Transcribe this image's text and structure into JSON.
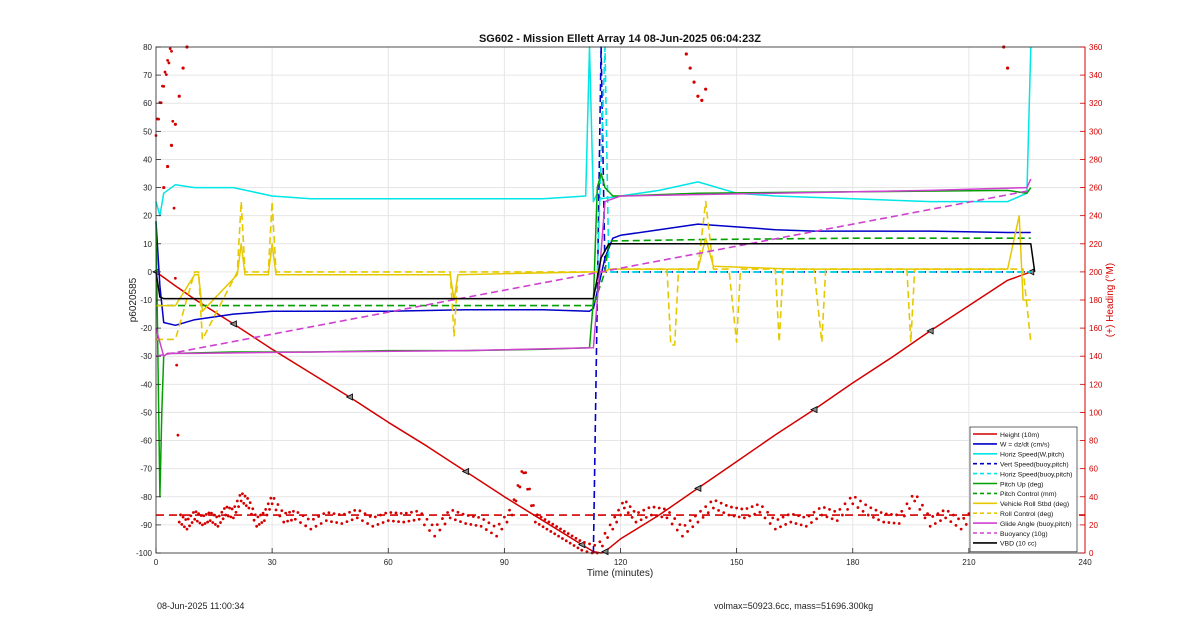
{
  "chart_data": {
    "type": "line",
    "title": "SG602 - Mission Ellett Array 14 08-Jun-2025 06:04:23Z",
    "xlabel": "Time (minutes)",
    "ylabel_left": "p6020585",
    "ylabel_right": "(+) Heading (°M)",
    "xlim": [
      0,
      240
    ],
    "ylim_left": [
      -100,
      80
    ],
    "ylim_right": [
      0,
      360
    ],
    "xticks": [
      0,
      30,
      60,
      90,
      120,
      150,
      180,
      210,
      240
    ],
    "yticks_left": [
      -100,
      -90,
      -80,
      -70,
      -60,
      -50,
      -40,
      -30,
      -20,
      -10,
      0,
      10,
      20,
      30,
      40,
      50,
      60,
      70,
      80
    ],
    "yticks_right": [
      0,
      20,
      40,
      60,
      80,
      100,
      120,
      140,
      160,
      180,
      200,
      220,
      240,
      260,
      280,
      300,
      320,
      340,
      360
    ],
    "grid": true,
    "legend_position": "bottom-right",
    "colors": {
      "height": "#d40000",
      "w": "#0000c8",
      "horiz": "#00e5e5",
      "pitch": "#00a000",
      "roll": "#e6c800",
      "glide": "#d040d0",
      "vbd": "#000000"
    },
    "series": [
      {
        "name": "Height (10m)",
        "color": "#d40000",
        "style": "solid",
        "marker": "triangle",
        "x": [
          0,
          5,
          10,
          20,
          30,
          40,
          50,
          60,
          70,
          80,
          90,
          100,
          110,
          113,
          115,
          116,
          120,
          130,
          140,
          150,
          160,
          170,
          180,
          190,
          200,
          210,
          220,
          226
        ],
        "y": [
          0,
          -5,
          -9.7,
          -18.5,
          -27.5,
          -36,
          -44.5,
          -53.5,
          -62,
          -71,
          -80,
          -88.5,
          -97,
          -99.5,
          -100,
          -99.5,
          -95,
          -86.5,
          -77,
          -67.5,
          -58,
          -49,
          -39.5,
          -30.5,
          -21,
          -12,
          -3,
          0
        ]
      },
      {
        "name": "W = dz/dt (cm/s)",
        "color": "#0000c8",
        "style": "solid",
        "x": [
          0,
          1,
          2,
          5,
          10,
          20,
          30,
          40,
          60,
          80,
          100,
          112,
          113,
          116,
          118,
          120,
          130,
          140,
          150,
          160,
          170,
          180,
          200,
          220,
          226
        ],
        "y": [
          18,
          -5,
          -18,
          -19,
          -17,
          -15,
          -14,
          -14,
          -14,
          -13.5,
          -13.5,
          -14,
          -13,
          5,
          12,
          13,
          15,
          17,
          16,
          15,
          14.5,
          14.5,
          14.5,
          14,
          14
        ]
      },
      {
        "name": "Horiz Speed(W,pitch)",
        "color": "#00e5e5",
        "style": "solid",
        "x": [
          0,
          1,
          2,
          5,
          10,
          20,
          30,
          40,
          60,
          80,
          100,
          111,
          112,
          113,
          114,
          115,
          120,
          130,
          140,
          150,
          160,
          180,
          200,
          220,
          225,
          226
        ],
        "y": [
          25,
          20,
          28,
          31,
          30,
          30,
          27,
          26,
          26,
          26,
          26,
          27,
          80,
          25,
          28,
          26,
          27,
          29,
          32,
          28,
          27,
          26,
          25,
          25,
          28,
          80
        ]
      },
      {
        "name": "Vert Speed(buoy,pitch)",
        "color": "#0000c8",
        "style": "dashed",
        "x": [
          113,
          115,
          116,
          117,
          120,
          140,
          160,
          200,
          226
        ],
        "y": [
          -100,
          80,
          0,
          0,
          0,
          0,
          0,
          0,
          0
        ]
      },
      {
        "name": "Horiz Speed(buoy,pitch)",
        "color": "#00e5e5",
        "style": "dashed",
        "x": [
          114,
          116,
          117,
          118,
          120,
          140,
          200,
          226
        ],
        "y": [
          0,
          80,
          0,
          0,
          0,
          0,
          0,
          0
        ]
      },
      {
        "name": "Pitch Up (deg)",
        "color": "#00a000",
        "style": "solid",
        "x": [
          0,
          1,
          1.5,
          2,
          3,
          5,
          20,
          40,
          60,
          80,
          100,
          112,
          113,
          114,
          115,
          116,
          118,
          120,
          140,
          180,
          220,
          225,
          226
        ],
        "y": [
          18,
          -80,
          -50,
          -30,
          -29,
          -29,
          -28.5,
          -28.5,
          -28,
          -28,
          -27.5,
          -27,
          -10,
          30,
          35,
          30,
          27,
          27,
          28,
          28.5,
          29,
          28,
          30
        ]
      },
      {
        "name": "Pitch Control (mm)",
        "color": "#00a000",
        "style": "dashed",
        "x": [
          0,
          2,
          113,
          116,
          117,
          140,
          180,
          226
        ],
        "y": [
          -12,
          -12,
          -12,
          0,
          11,
          11.5,
          12,
          12
        ]
      },
      {
        "name": "Vehicle Roll Stbd (deg)",
        "color": "#e6c800",
        "style": "solid",
        "x": [
          0,
          2,
          5,
          10,
          11,
          12,
          21,
          22,
          23,
          29,
          30,
          31,
          36,
          76,
          77,
          78,
          113,
          116,
          117,
          140,
          142,
          144,
          165,
          185,
          205,
          215,
          220,
          223,
          224,
          226
        ],
        "y": [
          -12,
          -12,
          -12,
          -1,
          -1,
          -14,
          -1,
          10,
          -1,
          -1,
          10,
          -1,
          -1,
          -1,
          -10,
          -1,
          0,
          0,
          1,
          1,
          12,
          2,
          1,
          1,
          1,
          1,
          1,
          20,
          -10,
          -10
        ]
      },
      {
        "name": "Roll Control (deg)",
        "color": "#e6c800",
        "style": "dashed",
        "x": [
          0,
          2,
          5,
          10,
          11,
          12,
          21,
          22,
          23,
          29,
          30,
          31,
          36,
          76,
          77,
          78,
          113,
          116,
          117,
          132,
          133,
          134,
          135,
          140,
          142,
          144,
          148,
          150,
          151,
          160,
          161,
          162,
          170,
          172,
          173,
          194,
          195,
          196,
          224,
          226
        ],
        "y": [
          -24,
          -24,
          -24,
          0,
          0,
          -24,
          0,
          25,
          0,
          0,
          25,
          0,
          0,
          0,
          -23,
          0,
          0,
          0,
          1,
          1,
          -26,
          -26,
          1,
          1,
          25,
          1,
          1,
          -25,
          1,
          1,
          -25,
          1,
          1,
          -25,
          1,
          1,
          -25,
          1,
          1,
          -25
        ]
      },
      {
        "name": "Glide Angle (buoy,pitch)",
        "color": "#d040d0",
        "style": "solid",
        "x": [
          0,
          2,
          3,
          10,
          40,
          80,
          113,
          114,
          116,
          120,
          160,
          200,
          225,
          226
        ],
        "y": [
          -20,
          -30,
          -29,
          -29,
          -28.5,
          -28,
          -27,
          -10,
          25,
          27,
          28,
          29,
          30,
          33
        ]
      },
      {
        "name": "Buoyancy (10g)",
        "color": "#d040d0",
        "style": "dashed",
        "x": [
          0,
          226
        ],
        "y": [
          -30,
          29
        ]
      },
      {
        "name": "VBD (10 cc)",
        "color": "#000000",
        "style": "solid",
        "x": [
          0,
          1,
          2,
          113,
          115,
          117,
          118,
          226,
          227
        ],
        "y": [
          0,
          -9,
          -9.5,
          -9.5,
          5,
          10,
          10,
          10,
          0
        ]
      }
    ],
    "heading": {
      "name": "(+) Heading (°M)",
      "axis": "right",
      "color": "#d40000",
      "mean": 27,
      "samples_x": [
        0,
        2,
        4,
        6,
        8,
        10,
        12,
        14,
        16,
        18,
        20,
        22,
        24,
        26,
        28,
        30,
        33,
        36,
        40,
        44,
        48,
        52,
        56,
        60,
        64,
        68,
        72,
        76,
        80,
        84,
        88,
        92,
        95,
        98,
        101,
        104,
        107,
        110,
        114,
        118,
        121,
        124,
        128,
        132,
        136,
        140,
        144,
        148,
        152,
        156,
        160,
        164,
        168,
        172,
        176,
        180,
        184,
        188,
        192,
        196,
        200,
        204,
        208,
        212,
        216,
        220,
        224,
        226
      ],
      "samples_y": [
        300,
        335,
        360,
        25,
        20,
        27,
        23,
        26,
        22,
        30,
        28,
        40,
        35,
        22,
        26,
        38,
        25,
        27,
        20,
        26,
        24,
        28,
        22,
        26,
        25,
        27,
        15,
        28,
        24,
        22,
        15,
        30,
        60,
        25,
        20,
        15,
        10,
        5,
        2,
        20,
        35,
        25,
        30,
        28,
        15,
        25,
        35,
        30,
        28,
        32,
        20,
        25,
        22,
        30,
        26,
        38,
        30,
        25,
        24,
        40,
        22,
        28,
        20,
        30,
        26,
        15,
        5,
        40
      ],
      "upper_x": [
        2,
        3,
        4,
        5,
        6,
        7,
        8,
        137,
        138,
        139,
        140,
        141,
        142,
        219,
        220
      ],
      "upper_y": [
        260,
        275,
        290,
        305,
        325,
        345,
        360,
        355,
        345,
        335,
        325,
        322,
        330,
        360,
        345
      ]
    },
    "legend_entries": [
      "Height (10m)",
      "W = dz/dt (cm/s)",
      "Horiz Speed(W,pitch)",
      "Vert Speed(buoy,pitch)",
      "Horiz Speed(buoy,pitch)",
      "Pitch Up (deg)",
      "Pitch Control (mm)",
      "Vehicle Roll Stbd (deg)",
      "Roll Control (deg)",
      "Glide Angle (buoy,pitch)",
      "Buoyancy (10g)",
      "VBD (10 cc)"
    ]
  },
  "footer": {
    "timestamp": "08-Jun-2025 11:00:34",
    "mass_info": "volmax=50923.6cc, mass=51696.300kg"
  }
}
